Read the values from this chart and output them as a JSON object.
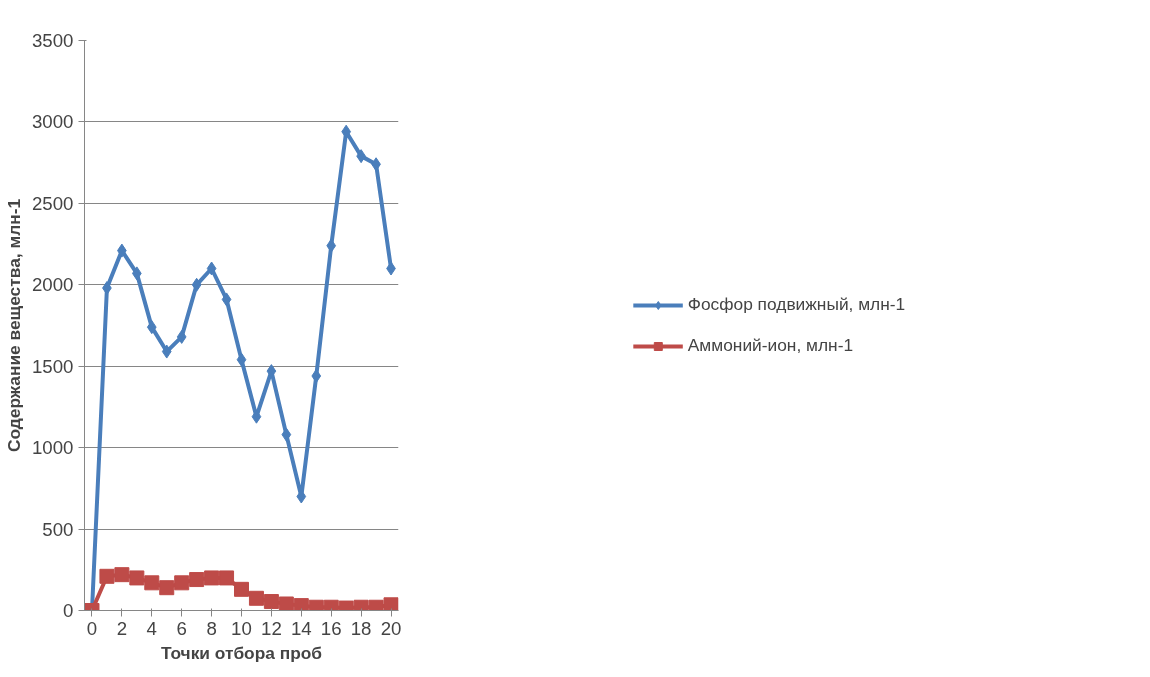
{
  "chart_data": {
    "type": "line",
    "xlabel": "Точки отбора проб",
    "ylabel": "Содержание вещества, млн-1",
    "x": [
      0,
      1,
      2,
      3,
      4,
      5,
      6,
      7,
      8,
      9,
      10,
      11,
      12,
      13,
      14,
      15,
      16,
      17,
      18,
      19,
      20
    ],
    "series": [
      {
        "name": "Фосфор подвижный, млн-1",
        "color": "#4a7ebb",
        "marker": "diamond",
        "values": [
          0,
          1980,
          2210,
          2070,
          1740,
          1590,
          1680,
          2000,
          2100,
          1910,
          1540,
          1190,
          1470,
          1080,
          700,
          1440,
          2240,
          2940,
          2790,
          2740,
          2100
        ]
      },
      {
        "name": "Аммоний-ион, млн-1",
        "color": "#be4b48",
        "marker": "square",
        "values": [
          0,
          210,
          220,
          200,
          170,
          140,
          170,
          190,
          200,
          200,
          130,
          75,
          55,
          40,
          30,
          20,
          20,
          15,
          20,
          20,
          35
        ]
      }
    ],
    "xlim": [
      -0.5,
      20.5
    ],
    "xticks": [
      0,
      2,
      4,
      6,
      8,
      10,
      12,
      14,
      16,
      18,
      20
    ],
    "ylim": [
      0,
      3500
    ],
    "yticks": [
      0,
      500,
      1000,
      1500,
      2000,
      2500,
      3000,
      3500
    ],
    "grid": "y",
    "legend": "right",
    "line_style": "solid"
  }
}
